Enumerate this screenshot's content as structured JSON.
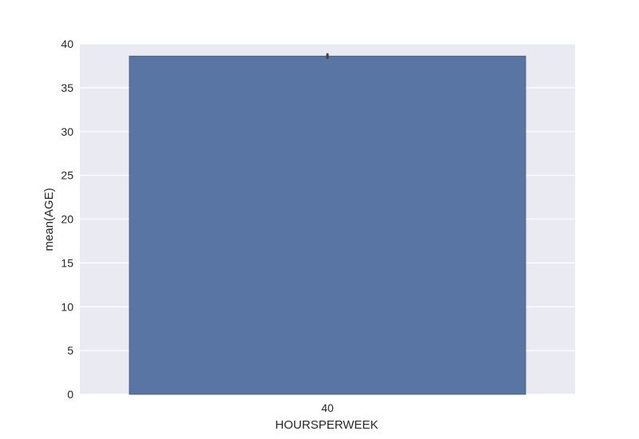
{
  "chart_data": {
    "type": "bar",
    "title": "",
    "xlabel": "HOURSPERWEEK",
    "ylabel": "mean(AGE)",
    "categories": [
      "40"
    ],
    "values": [
      38.6
    ],
    "error_bars": [
      [
        38.4,
        38.8
      ]
    ],
    "ylim": [
      0,
      40
    ],
    "yticks": [
      0,
      5,
      10,
      15,
      20,
      25,
      30,
      35,
      40
    ],
    "grid": true,
    "legend": "none",
    "colors": {
      "bar": "#5975a4",
      "bar_edge": "#4a5f84",
      "plot_background": "#eaeaf2",
      "grid": "#ffffff",
      "error_bar": "#424242",
      "text": "#262626"
    }
  }
}
